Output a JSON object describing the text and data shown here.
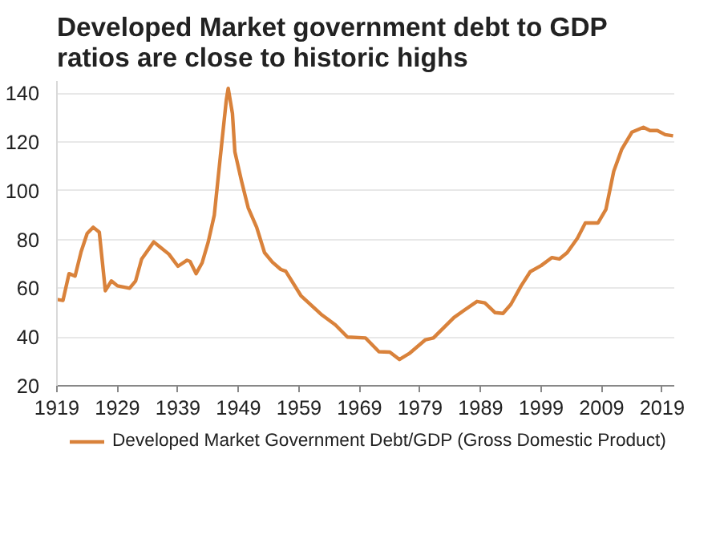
{
  "chart_data": {
    "type": "line",
    "title": "Developed Market government debt to GDP ratios are close to historic highs",
    "x": [
      1919,
      1920,
      1921,
      1922,
      1923,
      1924,
      1925,
      1926,
      1927,
      1928,
      1929,
      1931,
      1932,
      1933,
      1935,
      1936,
      1937.5,
      1939,
      1940.5,
      1941,
      1942,
      1943,
      1944,
      1945,
      1946,
      1947,
      1947.3,
      1948,
      1948.4,
      1949.5,
      1950.6,
      1952,
      1953.3,
      1954.6,
      1956,
      1956.8,
      1959.3,
      1960.6,
      1962.8,
      1965,
      1967,
      1970,
      1972.2,
      1974,
      1975.6,
      1977.3,
      1979.9,
      1981.2,
      1984.6,
      1986.3,
      1988.4,
      1989.7,
      1991.4,
      1992.7,
      1994,
      1995.7,
      1997.2,
      1999,
      2000.8,
      2002,
      2003.3,
      2005,
      2006.3,
      2008.4,
      2009.7,
      2011,
      2012.3,
      2014,
      2015.9,
      2017,
      2018.2,
      2019.5,
      2020.8
    ],
    "series": [
      {
        "name": "Developed Market Government Debt/GDP (Gross Domestic Product)",
        "color": "#d9823b",
        "values": [
          55.4,
          55,
          66,
          65,
          75,
          82.5,
          85,
          83,
          59,
          63,
          61,
          60,
          63,
          72,
          79,
          77,
          74,
          69,
          71.5,
          71,
          66,
          70.5,
          79,
          90,
          114,
          137.5,
          142,
          131.6,
          116,
          104,
          93,
          85,
          74.6,
          70.7,
          67.7,
          67,
          57,
          54,
          49,
          45,
          40,
          39.6,
          34,
          33.8,
          30.8,
          33.4,
          38.9,
          39.6,
          48,
          51,
          54.6,
          54,
          50,
          49.7,
          53.4,
          61,
          66.8,
          69.3,
          72.6,
          72,
          74.6,
          80.5,
          86.8,
          86.8,
          92.3,
          108,
          116.9,
          124,
          126,
          124.7,
          124.7,
          123,
          122.5
        ]
      }
    ],
    "xlim": [
      1919,
      2021
    ],
    "ylim": [
      20,
      145
    ],
    "xticks": [
      1919,
      1929,
      1939,
      1949,
      1959,
      1969,
      1979,
      1989,
      1999,
      2009,
      2019
    ],
    "yticks": [
      20,
      40,
      60,
      80,
      100,
      120,
      140
    ],
    "grid": "y",
    "legend": "bottom",
    "line_style": "solid",
    "marker": "none"
  }
}
